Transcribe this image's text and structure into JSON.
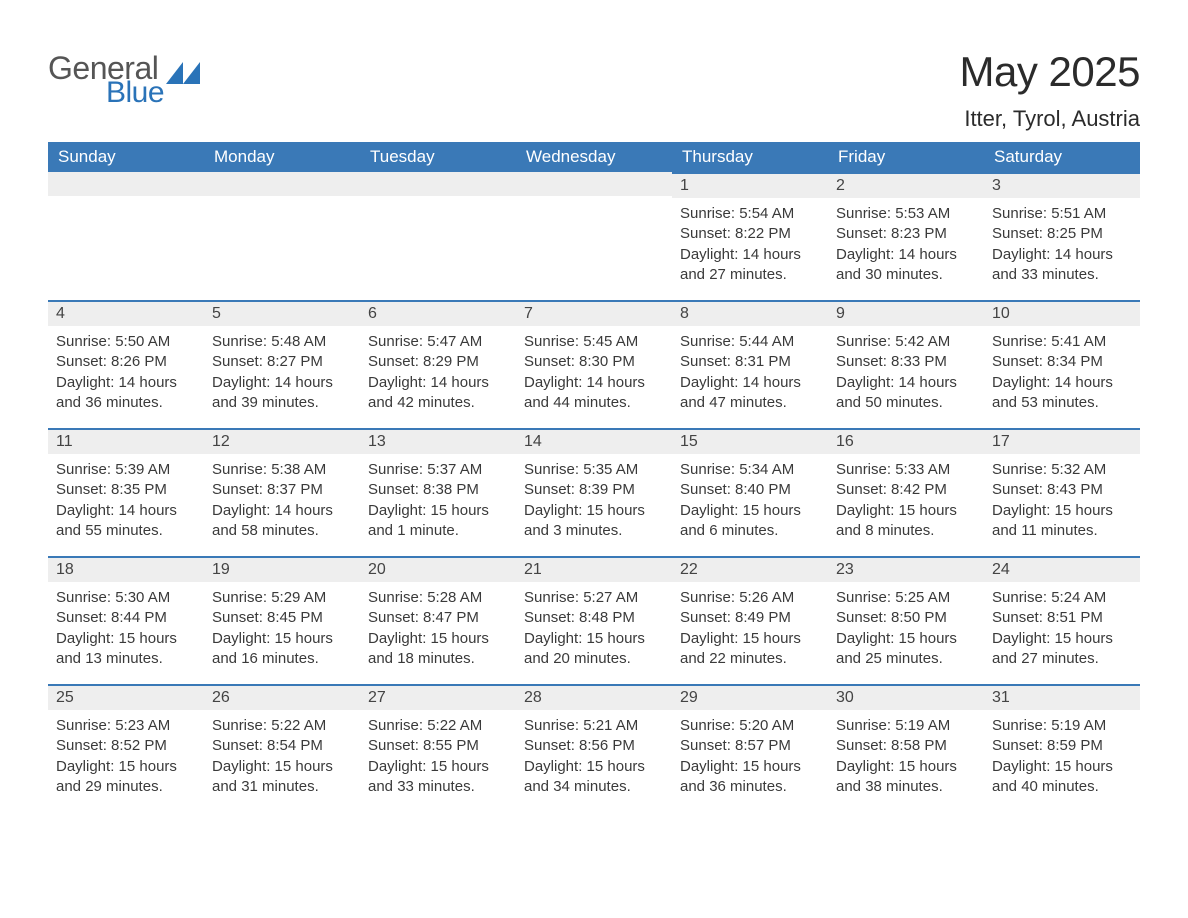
{
  "brand": {
    "line1": "General",
    "line2": "Blue",
    "tri_color": "#2a73b8"
  },
  "header": {
    "title": "May 2025",
    "location": "Itter, Tyrol, Austria"
  },
  "colors": {
    "header_bg": "#3a79b7",
    "header_text": "#ffffff",
    "daynum_bg": "#eeeeee",
    "daynum_border": "#3a79b7",
    "body_text": "#3a3a3a",
    "page_bg": "#ffffff"
  },
  "weekdays": [
    "Sunday",
    "Monday",
    "Tuesday",
    "Wednesday",
    "Thursday",
    "Friday",
    "Saturday"
  ],
  "layout": {
    "columns": 7,
    "rows": 5,
    "col_width_pct": 14.2857
  },
  "weeks": [
    [
      null,
      null,
      null,
      null,
      {
        "n": "1",
        "sunrise": "5:54 AM",
        "sunset": "8:22 PM",
        "dl": "14 hours and 27 minutes."
      },
      {
        "n": "2",
        "sunrise": "5:53 AM",
        "sunset": "8:23 PM",
        "dl": "14 hours and 30 minutes."
      },
      {
        "n": "3",
        "sunrise": "5:51 AM",
        "sunset": "8:25 PM",
        "dl": "14 hours and 33 minutes."
      }
    ],
    [
      {
        "n": "4",
        "sunrise": "5:50 AM",
        "sunset": "8:26 PM",
        "dl": "14 hours and 36 minutes."
      },
      {
        "n": "5",
        "sunrise": "5:48 AM",
        "sunset": "8:27 PM",
        "dl": "14 hours and 39 minutes."
      },
      {
        "n": "6",
        "sunrise": "5:47 AM",
        "sunset": "8:29 PM",
        "dl": "14 hours and 42 minutes."
      },
      {
        "n": "7",
        "sunrise": "5:45 AM",
        "sunset": "8:30 PM",
        "dl": "14 hours and 44 minutes."
      },
      {
        "n": "8",
        "sunrise": "5:44 AM",
        "sunset": "8:31 PM",
        "dl": "14 hours and 47 minutes."
      },
      {
        "n": "9",
        "sunrise": "5:42 AM",
        "sunset": "8:33 PM",
        "dl": "14 hours and 50 minutes."
      },
      {
        "n": "10",
        "sunrise": "5:41 AM",
        "sunset": "8:34 PM",
        "dl": "14 hours and 53 minutes."
      }
    ],
    [
      {
        "n": "11",
        "sunrise": "5:39 AM",
        "sunset": "8:35 PM",
        "dl": "14 hours and 55 minutes."
      },
      {
        "n": "12",
        "sunrise": "5:38 AM",
        "sunset": "8:37 PM",
        "dl": "14 hours and 58 minutes."
      },
      {
        "n": "13",
        "sunrise": "5:37 AM",
        "sunset": "8:38 PM",
        "dl": "15 hours and 1 minute."
      },
      {
        "n": "14",
        "sunrise": "5:35 AM",
        "sunset": "8:39 PM",
        "dl": "15 hours and 3 minutes."
      },
      {
        "n": "15",
        "sunrise": "5:34 AM",
        "sunset": "8:40 PM",
        "dl": "15 hours and 6 minutes."
      },
      {
        "n": "16",
        "sunrise": "5:33 AM",
        "sunset": "8:42 PM",
        "dl": "15 hours and 8 minutes."
      },
      {
        "n": "17",
        "sunrise": "5:32 AM",
        "sunset": "8:43 PM",
        "dl": "15 hours and 11 minutes."
      }
    ],
    [
      {
        "n": "18",
        "sunrise": "5:30 AM",
        "sunset": "8:44 PM",
        "dl": "15 hours and 13 minutes."
      },
      {
        "n": "19",
        "sunrise": "5:29 AM",
        "sunset": "8:45 PM",
        "dl": "15 hours and 16 minutes."
      },
      {
        "n": "20",
        "sunrise": "5:28 AM",
        "sunset": "8:47 PM",
        "dl": "15 hours and 18 minutes."
      },
      {
        "n": "21",
        "sunrise": "5:27 AM",
        "sunset": "8:48 PM",
        "dl": "15 hours and 20 minutes."
      },
      {
        "n": "22",
        "sunrise": "5:26 AM",
        "sunset": "8:49 PM",
        "dl": "15 hours and 22 minutes."
      },
      {
        "n": "23",
        "sunrise": "5:25 AM",
        "sunset": "8:50 PM",
        "dl": "15 hours and 25 minutes."
      },
      {
        "n": "24",
        "sunrise": "5:24 AM",
        "sunset": "8:51 PM",
        "dl": "15 hours and 27 minutes."
      }
    ],
    [
      {
        "n": "25",
        "sunrise": "5:23 AM",
        "sunset": "8:52 PM",
        "dl": "15 hours and 29 minutes."
      },
      {
        "n": "26",
        "sunrise": "5:22 AM",
        "sunset": "8:54 PM",
        "dl": "15 hours and 31 minutes."
      },
      {
        "n": "27",
        "sunrise": "5:22 AM",
        "sunset": "8:55 PM",
        "dl": "15 hours and 33 minutes."
      },
      {
        "n": "28",
        "sunrise": "5:21 AM",
        "sunset": "8:56 PM",
        "dl": "15 hours and 34 minutes."
      },
      {
        "n": "29",
        "sunrise": "5:20 AM",
        "sunset": "8:57 PM",
        "dl": "15 hours and 36 minutes."
      },
      {
        "n": "30",
        "sunrise": "5:19 AM",
        "sunset": "8:58 PM",
        "dl": "15 hours and 38 minutes."
      },
      {
        "n": "31",
        "sunrise": "5:19 AM",
        "sunset": "8:59 PM",
        "dl": "15 hours and 40 minutes."
      }
    ]
  ],
  "labels": {
    "sunrise": "Sunrise:",
    "sunset": "Sunset:",
    "daylight": "Daylight:"
  }
}
